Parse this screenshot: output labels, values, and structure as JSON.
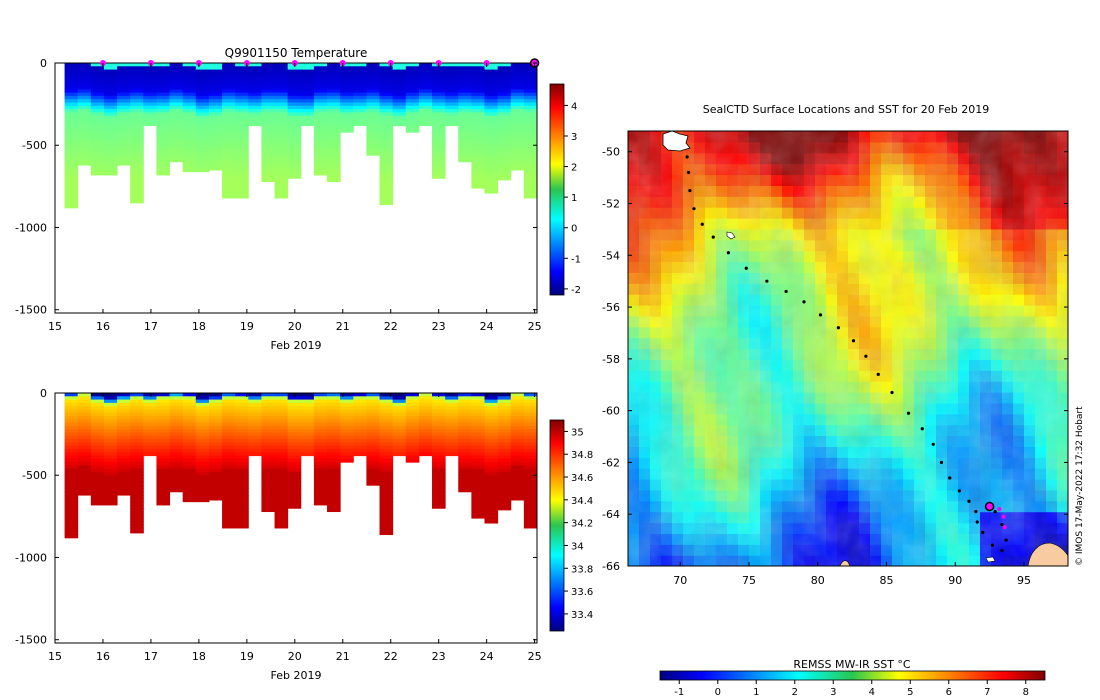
{
  "chart_data": [
    {
      "id": "temp",
      "type": "heatmap",
      "title": "Q9901150  Temperature",
      "xlabel": "Feb 2019",
      "ylabel": "",
      "x_ticks": [
        "15",
        "16",
        "17",
        "18",
        "19",
        "20",
        "21",
        "22",
        "23",
        "24",
        "25"
      ],
      "y_ticks": [
        "0",
        "-500",
        "-1000",
        "-1500"
      ],
      "xlim": [
        15,
        25.05
      ],
      "ylim": [
        -1520,
        0
      ],
      "colorbar_ticks": [
        "4",
        "3",
        "2",
        "1",
        "0",
        "-1",
        "-2"
      ],
      "colorbar_range": [
        -2.2,
        4.7
      ],
      "colormap": "jet",
      "profile_max_depth": [
        -880,
        -620,
        -680,
        -680,
        -620,
        -850,
        -380,
        -680,
        -600,
        -660,
        -660,
        -650,
        -820,
        -820,
        -380,
        -720,
        -820,
        -700,
        -380,
        -680,
        -720,
        -420,
        -380,
        -560,
        -860,
        -380,
        -420,
        -380,
        -700,
        -380,
        -600,
        -760,
        -790,
        -710,
        -650,
        -820
      ],
      "marker_days": [
        16,
        17,
        18,
        19,
        20,
        21,
        22,
        23,
        24
      ],
      "current_day": 25
    },
    {
      "id": "sal",
      "type": "heatmap",
      "title": "",
      "xlabel": "Feb 2019",
      "ylabel": "",
      "x_ticks": [
        "15",
        "16",
        "17",
        "18",
        "19",
        "20",
        "21",
        "22",
        "23",
        "24",
        "25"
      ],
      "y_ticks": [
        "0",
        "-500",
        "-1000",
        "-1500"
      ],
      "xlim": [
        15,
        25.05
      ],
      "ylim": [
        -1520,
        0
      ],
      "colorbar_ticks": [
        "35",
        "34.8",
        "34.6",
        "34.4",
        "34.2",
        "34",
        "33.8",
        "33.6",
        "33.4"
      ],
      "colorbar_range": [
        33.25,
        35.1
      ],
      "colormap": "jet",
      "profile_max_depth": [
        -880,
        -620,
        -680,
        -680,
        -620,
        -850,
        -380,
        -680,
        -600,
        -660,
        -660,
        -650,
        -820,
        -820,
        -380,
        -720,
        -820,
        -700,
        -380,
        -680,
        -720,
        -420,
        -380,
        -560,
        -860,
        -380,
        -420,
        -380,
        -700,
        -380,
        -600,
        -760,
        -790,
        -710,
        -650,
        -820
      ]
    },
    {
      "id": "map",
      "type": "heatmap",
      "title": "SealCTD Surface Locations and SST for 20 Feb 2019",
      "x_ticks": [
        "70",
        "75",
        "80",
        "85",
        "90",
        "95"
      ],
      "y_ticks": [
        "-50",
        "-52",
        "-54",
        "-56",
        "-58",
        "-60",
        "-62",
        "-64",
        "-66"
      ],
      "xlim": [
        66.2,
        98.2
      ],
      "ylim": [
        -66,
        -49.2
      ],
      "colorbar_label": "REMSS MW-IR SST °C",
      "colorbar_ticks": [
        "-1",
        "0",
        "1",
        "2",
        "3",
        "4",
        "5",
        "6",
        "7",
        "8"
      ],
      "colorbar_range": [
        -1.5,
        8.5
      ],
      "credit": "© IMOS 17-May-2022 17:32 Hobart",
      "track": [
        [
          70.5,
          -50.2
        ],
        [
          70.6,
          -50.8
        ],
        [
          70.7,
          -51.5
        ],
        [
          71.0,
          -52.2
        ],
        [
          71.6,
          -52.8
        ],
        [
          72.4,
          -53.3
        ],
        [
          73.5,
          -53.9
        ],
        [
          74.8,
          -54.5
        ],
        [
          76.3,
          -55.0
        ],
        [
          77.7,
          -55.4
        ],
        [
          79.0,
          -55.8
        ],
        [
          80.2,
          -56.3
        ],
        [
          81.5,
          -56.8
        ],
        [
          82.6,
          -57.3
        ],
        [
          83.5,
          -57.9
        ],
        [
          84.4,
          -58.6
        ],
        [
          85.4,
          -59.3
        ],
        [
          86.6,
          -60.1
        ],
        [
          87.6,
          -60.7
        ],
        [
          88.4,
          -61.3
        ],
        [
          89.0,
          -62.0
        ],
        [
          89.6,
          -62.6
        ],
        [
          90.3,
          -63.1
        ],
        [
          91.0,
          -63.5
        ],
        [
          91.5,
          -63.9
        ],
        [
          91.6,
          -64.3
        ],
        [
          92.0,
          -64.7
        ],
        [
          92.7,
          -65.2
        ],
        [
          93.4,
          -65.4
        ],
        [
          93.7,
          -65.0
        ],
        [
          93.4,
          -64.4
        ],
        [
          92.9,
          -63.9
        ],
        [
          92.5,
          -63.7
        ]
      ],
      "magenta_track": [
        [
          92.5,
          -63.7
        ],
        [
          93.2,
          -63.8
        ],
        [
          93.5,
          -64.1
        ],
        [
          93.6,
          -64.5
        ]
      ],
      "current_position": [
        92.5,
        -63.7
      ]
    }
  ]
}
